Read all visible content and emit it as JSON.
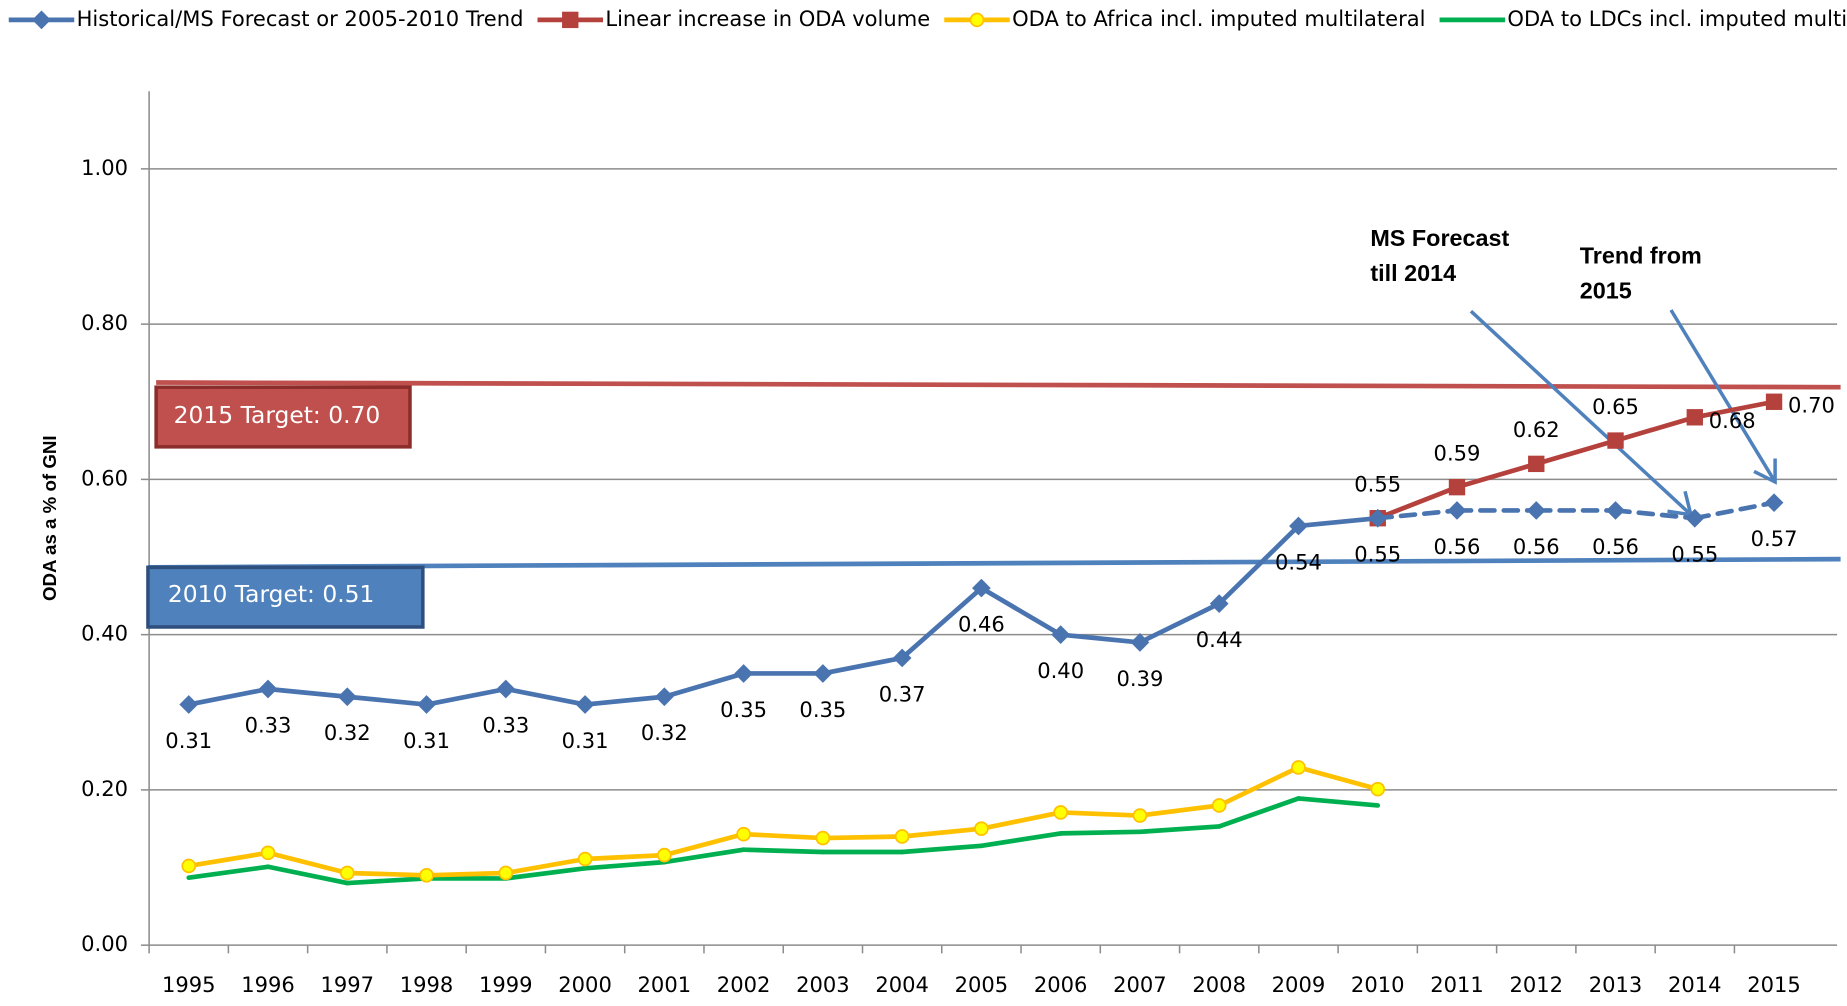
{
  "chart_data": {
    "type": "line",
    "y_label": "ODA as a % of GNI",
    "categories": [
      "1995",
      "1996",
      "1997",
      "1998",
      "1999",
      "2000",
      "2001",
      "2002",
      "2003",
      "2004",
      "2005",
      "2006",
      "2007",
      "2008",
      "2009",
      "2010",
      "2011",
      "2012",
      "2013",
      "2014",
      "2015"
    ],
    "ylim": [
      0,
      1.1
    ],
    "yticks": [
      {
        "value": 0,
        "label": "0.00"
      },
      {
        "value": 0.2,
        "label": "0.20"
      },
      {
        "value": 0.4,
        "label": "0.40"
      },
      {
        "value": 0.6,
        "label": "0.60"
      },
      {
        "value": 0.8,
        "label": "0.80"
      },
      {
        "value": 1.0,
        "label": "1.00"
      }
    ],
    "grid": true,
    "legend": "top",
    "series": [
      {
        "name": "Historical/MS Forecast or 2005-2010 Trend",
        "color": "#4a74b0",
        "marker": "diamond",
        "dashed_from": 15,
        "values": [
          0.31,
          0.33,
          0.32,
          0.31,
          0.33,
          0.31,
          0.32,
          0.35,
          0.35,
          0.37,
          0.46,
          0.4,
          0.39,
          0.44,
          0.54,
          0.55,
          0.56,
          0.56,
          0.56,
          0.55,
          0.57
        ],
        "value_labels": [
          "0.31",
          "0.33",
          "0.32",
          "0.31",
          "0.33",
          "0.31",
          "0.32",
          "0.35",
          "0.35",
          "0.37",
          "0.46",
          "0.40",
          "0.39",
          "0.44",
          "0.54",
          "0.55",
          "0.56",
          "0.56",
          "0.56",
          "0.55",
          "0.57"
        ]
      },
      {
        "name": "Linear increase in ODA volume",
        "color": "#b5413d",
        "marker": "square",
        "values": [
          null,
          null,
          null,
          null,
          null,
          null,
          null,
          null,
          null,
          null,
          null,
          null,
          null,
          null,
          null,
          0.55,
          0.59,
          0.62,
          0.65,
          0.68,
          0.7
        ],
        "value_labels": [
          null,
          null,
          null,
          null,
          null,
          null,
          null,
          null,
          null,
          null,
          null,
          null,
          null,
          null,
          null,
          "0.55",
          "0.59",
          "0.62",
          "0.65",
          "0.68",
          "0.70"
        ]
      },
      {
        "name": "ODA to Africa incl. imputed multilateral",
        "color": "#ffc000",
        "marker": "circle",
        "marker_fill": "#ffff00",
        "values": [
          0.102,
          0.119,
          0.093,
          0.09,
          0.093,
          0.111,
          0.116,
          0.143,
          0.138,
          0.14,
          0.15,
          0.171,
          0.167,
          0.18,
          0.229,
          0.201,
          null,
          null,
          null,
          null,
          null
        ]
      },
      {
        "name": "ODA to LDCs incl. imputed multilateral",
        "color": "#00b050",
        "marker": "none",
        "values": [
          0.087,
          0.101,
          0.08,
          0.086,
          0.086,
          0.099,
          0.107,
          0.123,
          0.12,
          0.12,
          0.128,
          0.144,
          0.146,
          0.153,
          0.189,
          0.18,
          null,
          null,
          null,
          null,
          null
        ]
      }
    ],
    "annotations": {
      "target_2015": "2015 Target: 0.70",
      "target_2010": "2010 Target: 0.51",
      "ms_forecast": [
        "MS Forecast",
        "till 2014"
      ],
      "trend": [
        "Trend from",
        "2015"
      ]
    }
  }
}
